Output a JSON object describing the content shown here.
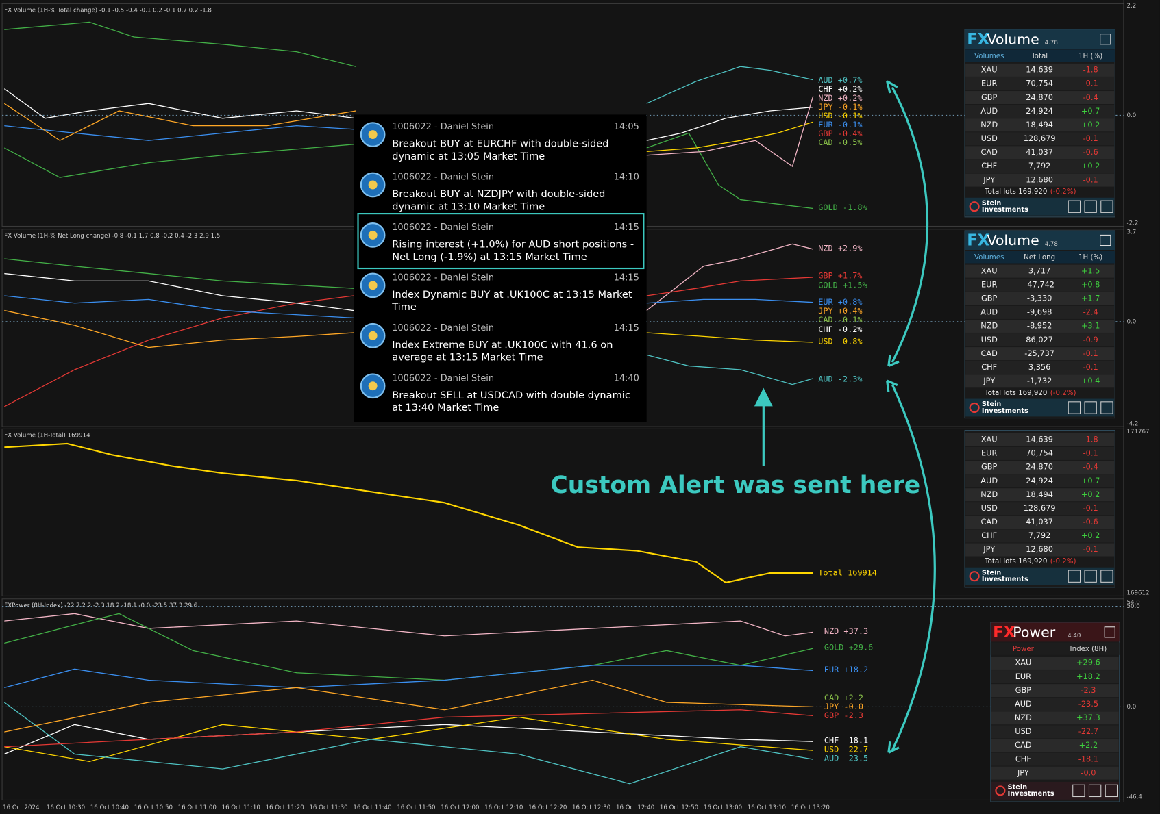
{
  "panels": [
    {
      "title": "FX Volume (1H-% Total change)  -0.1 -0.5 -0.4 -0.1 0.2 -0.1 0.7 0.2 -1.8",
      "ticks": [
        "2.2",
        "0.0",
        "-2.2"
      ],
      "labels": [
        {
          "text": "AUD +0.7%",
          "color": "#4fc3c3"
        },
        {
          "text": "CHF +0.2%",
          "color": "#ffffff"
        },
        {
          "text": "NZD +0.2%",
          "color": "#f3b6c6"
        },
        {
          "text": "JPY -0.1%",
          "color": "#ffa726"
        },
        {
          "text": "USD -0.1%",
          "color": "#ffd600"
        },
        {
          "text": "EUR -0.1%",
          "color": "#3b8ff0"
        },
        {
          "text": "GBP -0.4%",
          "color": "#e53935"
        },
        {
          "text": "CAD -0.5%",
          "color": "#8bc34a"
        },
        {
          "text": "GOLD -1.8%",
          "color": "#43b047"
        }
      ]
    },
    {
      "title": "FX Volume (1H-% Net Long change)  -0.8 -0.1 1.7 0.8 -0.2 0.4 -2.3 2.9 1.5",
      "ticks": [
        "3.7",
        "0.0",
        "-4.2"
      ],
      "labels": [
        {
          "text": "NZD +2.9%",
          "color": "#f3b6c6"
        },
        {
          "text": "GBP +1.7%",
          "color": "#e53935"
        },
        {
          "text": "GOLD +1.5%",
          "color": "#43b047"
        },
        {
          "text": "EUR +0.8%",
          "color": "#3b8ff0"
        },
        {
          "text": "JPY +0.4%",
          "color": "#ffa726"
        },
        {
          "text": "CAD -0.1%",
          "color": "#8bc34a"
        },
        {
          "text": "CHF -0.2%",
          "color": "#ffffff"
        },
        {
          "text": "USD -0.8%",
          "color": "#ffd600"
        },
        {
          "text": "AUD -2.3%",
          "color": "#4fc3c3"
        }
      ]
    },
    {
      "title": "FX Volume (1H-Total)  169914",
      "ticks": [
        "171767",
        "169612"
      ],
      "labels": [
        {
          "text": "Total 169914",
          "color": "#ffd600"
        }
      ]
    },
    {
      "title": "FXPower (8H-Index) -22.7 2.2 -2.3 18.2 -18.1 -0.0 -23.5 37.3 29.6",
      "ticks": [
        "54.0",
        "50.0",
        "0.0",
        "-46.4"
      ],
      "labels": [
        {
          "text": "NZD +37.3",
          "color": "#f3b6c6"
        },
        {
          "text": "GOLD +29.6",
          "color": "#43b047"
        },
        {
          "text": "EUR +18.2",
          "color": "#3b8ff0"
        },
        {
          "text": "CAD  +2.2",
          "color": "#8bc34a"
        },
        {
          "text": "JPY  -0.0",
          "color": "#ffa726"
        },
        {
          "text": "GBP  -2.3",
          "color": "#e53935"
        },
        {
          "text": "CHF -18.1",
          "color": "#ffffff"
        },
        {
          "text": "USD -22.7",
          "color": "#ffd600"
        },
        {
          "text": "AUD -23.5",
          "color": "#4fc3c3"
        }
      ]
    }
  ],
  "notifications": [
    {
      "sender": "1006022 - Daniel Stein",
      "time": "14:05",
      "lines": [
        "Breakout BUY at EURCHF with double-sided",
        "dynamic at 13:05 Market Time"
      ]
    },
    {
      "sender": "1006022 - Daniel Stein",
      "time": "14:10",
      "lines": [
        "Breakout BUY at NZDJPY with double-sided",
        "dynamic at 13:10 Market Time"
      ]
    },
    {
      "sender": "1006022 - Daniel Stein",
      "time": "14:15",
      "lines": [
        "Rising interest (+1.0%) for AUD short positions -",
        "Net Long (-1.9%) at 13:15 Market Time"
      ]
    },
    {
      "sender": "1006022 - Daniel Stein",
      "time": "14:15",
      "lines": [
        "Index Dynamic BUY at .UK100C at 13:15 Market",
        "Time"
      ]
    },
    {
      "sender": "1006022 - Daniel Stein",
      "time": "14:15",
      "lines": [
        "Index Extreme BUY at .UK100C with 41.6 on",
        "average at 13:15 Market Time"
      ]
    },
    {
      "sender": "1006022 - Daniel Stein",
      "time": "14:40",
      "lines": [
        "Breakout SELL at USDCAD with double dynamic",
        "at 13:40 Market Time"
      ]
    }
  ],
  "widgets": [
    {
      "brand": "FX",
      "name": "Volume",
      "version": "4.78",
      "columns": [
        "Volumes",
        "Total",
        "1H (%)"
      ],
      "rows": [
        [
          "XAU",
          "14,639",
          "-1.8"
        ],
        [
          "EUR",
          "70,754",
          "-0.1"
        ],
        [
          "GBP",
          "24,870",
          "-0.4"
        ],
        [
          "AUD",
          "24,924",
          "+0.7"
        ],
        [
          "NZD",
          "18,494",
          "+0.2"
        ],
        [
          "USD",
          "128,679",
          "-0.1"
        ],
        [
          "CAD",
          "41,037",
          "-0.6"
        ],
        [
          "CHF",
          "7,792",
          "+0.2"
        ],
        [
          "JPY",
          "12,680",
          "-0.1"
        ]
      ],
      "total": "Total lots 169,920",
      "total_change": "(-0.2%)",
      "footer": [
        "Stein",
        "Investments"
      ]
    },
    {
      "brand": "FX",
      "name": "Volume",
      "version": "4.78",
      "columns": [
        "Volumes",
        "Net Long",
        "1H (%)"
      ],
      "rows": [
        [
          "XAU",
          "3,717",
          "+1.5"
        ],
        [
          "EUR",
          "-47,742",
          "+0.8"
        ],
        [
          "GBP",
          "-3,330",
          "+1.7"
        ],
        [
          "AUD",
          "-9,698",
          "-2.4"
        ],
        [
          "NZD",
          "-8,952",
          "+3.1"
        ],
        [
          "USD",
          "86,027",
          "-0.9"
        ],
        [
          "CAD",
          "-25,737",
          "-0.1"
        ],
        [
          "CHF",
          "3,356",
          "-0.1"
        ],
        [
          "JPY",
          "-1,732",
          "+0.4"
        ]
      ],
      "total": "Total lots 169,920",
      "total_change": "(-0.2%)",
      "footer": [
        "Stein",
        "Investments"
      ]
    },
    {
      "rows": [
        [
          "XAU",
          "14,639",
          "-1.8"
        ],
        [
          "EUR",
          "70,754",
          "-0.1"
        ],
        [
          "GBP",
          "24,870",
          "-0.4"
        ],
        [
          "AUD",
          "24,924",
          "+0.7"
        ],
        [
          "NZD",
          "18,494",
          "+0.2"
        ],
        [
          "USD",
          "128,679",
          "-0.1"
        ],
        [
          "CAD",
          "41,037",
          "-0.6"
        ],
        [
          "CHF",
          "7,792",
          "+0.2"
        ],
        [
          "JPY",
          "12,680",
          "-0.1"
        ]
      ],
      "total": "Total lots 169,920",
      "total_change": "(-0.2%)",
      "footer": [
        "Stein",
        "Investments"
      ]
    },
    {
      "brand": "FX",
      "name": "Power",
      "version": "4.40",
      "columns": [
        "Power",
        "Index (8H)"
      ],
      "rows": [
        [
          "XAU",
          "+29.6"
        ],
        [
          "EUR",
          "+18.2"
        ],
        [
          "GBP",
          "-2.3"
        ],
        [
          "AUD",
          "-23.5"
        ],
        [
          "NZD",
          "+37.3"
        ],
        [
          "USD",
          "-22.7"
        ],
        [
          "CAD",
          "+2.2"
        ],
        [
          "CHF",
          "-18.1"
        ],
        [
          "JPY",
          "-0.0"
        ]
      ],
      "footer": [
        "Stein",
        "Investments"
      ]
    }
  ],
  "annotation": "Custom Alert was sent here",
  "time_axis": [
    "16 Oct 2024",
    "16 Oct 10:30",
    "16 Oct 10:40",
    "16 Oct 10:50",
    "16 Oct 11:00",
    "16 Oct 11:10",
    "16 Oct 11:20",
    "16 Oct 11:30",
    "16 Oct 11:40",
    "16 Oct 11:50",
    "16 Oct 12:00",
    "16 Oct 12:10",
    "16 Oct 12:20",
    "16 Oct 12:30",
    "16 Oct 12:40",
    "16 Oct 12:50",
    "16 Oct 13:00",
    "16 Oct 13:10",
    "16 Oct 13:20"
  ]
}
